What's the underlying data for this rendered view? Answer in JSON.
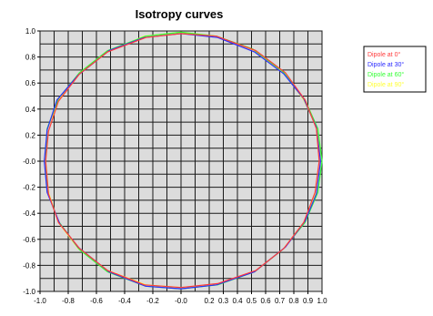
{
  "chart_data": {
    "type": "line",
    "title": "Isotropy curves",
    "xlabel": "",
    "ylabel": "",
    "xlim": [
      -1.0,
      1.0
    ],
    "ylim": [
      -1.0,
      1.0
    ],
    "grid": true,
    "legend_position": "right",
    "x_ticks": [
      -1.0,
      -0.8,
      -0.6,
      -0.4,
      -0.2,
      -0.0,
      0.2,
      0.3,
      0.4,
      0.5,
      0.6,
      0.7,
      0.8,
      0.9,
      1.0
    ],
    "x_tick_labels": [
      "-1.0",
      "-0.8",
      "-0.6",
      "-0.4",
      "-0.2",
      "-0.0",
      "0.2",
      "0.3",
      "0.4",
      "0.5",
      "0.6",
      "0.7",
      "0.8",
      "0.9",
      "1.0"
    ],
    "y_ticks": [
      1.0,
      0.8,
      0.6,
      0.4,
      0.2,
      0.0,
      -0.2,
      -0.4,
      -0.6,
      -0.8,
      -1.0
    ],
    "y_tick_labels": [
      "1.0",
      "0.8",
      "0.6",
      "0.4",
      "0.2",
      "-0.0",
      "-0.2",
      "-0.4",
      "-0.6",
      "-0.8",
      "-1.0"
    ],
    "series": [
      {
        "name": "Dipole at 0°",
        "color": "#ff3b3b",
        "points": [
          [
            0.98,
            0.0
          ],
          [
            0.96,
            0.25
          ],
          [
            0.88,
            0.47
          ],
          [
            0.74,
            0.68
          ],
          [
            0.53,
            0.85
          ],
          [
            0.25,
            0.96
          ],
          [
            0.0,
            0.98
          ],
          [
            -0.25,
            0.95
          ],
          [
            -0.52,
            0.84
          ],
          [
            -0.72,
            0.67
          ],
          [
            -0.87,
            0.46
          ],
          [
            -0.94,
            0.23
          ],
          [
            -0.96,
            0.0
          ],
          [
            -0.94,
            -0.25
          ],
          [
            -0.87,
            -0.47
          ],
          [
            -0.72,
            -0.67
          ],
          [
            -0.52,
            -0.84
          ],
          [
            -0.26,
            -0.95
          ],
          [
            0.0,
            -0.97
          ],
          [
            0.26,
            -0.94
          ],
          [
            0.53,
            -0.84
          ],
          [
            0.73,
            -0.67
          ],
          [
            0.87,
            -0.47
          ],
          [
            0.95,
            -0.24
          ],
          [
            0.98,
            0.0
          ]
        ]
      },
      {
        "name": "Dipole at 30°",
        "color": "#2b2bff",
        "points": [
          [
            0.99,
            0.0
          ],
          [
            0.96,
            0.26
          ],
          [
            0.87,
            0.48
          ],
          [
            0.73,
            0.67
          ],
          [
            0.52,
            0.84
          ],
          [
            0.26,
            0.95
          ],
          [
            0.0,
            0.98
          ],
          [
            -0.26,
            0.95
          ],
          [
            -0.51,
            0.85
          ],
          [
            -0.73,
            0.66
          ],
          [
            -0.88,
            0.47
          ],
          [
            -0.95,
            0.24
          ],
          [
            -0.97,
            0.0
          ],
          [
            -0.95,
            -0.24
          ],
          [
            -0.86,
            -0.48
          ],
          [
            -0.73,
            -0.66
          ],
          [
            -0.51,
            -0.85
          ],
          [
            -0.25,
            -0.96
          ],
          [
            0.0,
            -0.98
          ],
          [
            0.25,
            -0.95
          ],
          [
            0.52,
            -0.85
          ],
          [
            0.74,
            -0.66
          ],
          [
            0.88,
            -0.46
          ],
          [
            0.96,
            -0.25
          ],
          [
            0.99,
            0.0
          ]
        ]
      },
      {
        "name": "Dipole at 60°",
        "color": "#33ff33",
        "points": [
          [
            1.0,
            0.0
          ],
          [
            0.97,
            0.25
          ],
          [
            0.88,
            0.47
          ],
          [
            0.72,
            0.69
          ],
          [
            0.51,
            0.86
          ],
          [
            0.25,
            0.96
          ],
          [
            0.0,
            0.99
          ],
          [
            -0.25,
            0.96
          ],
          [
            -0.52,
            0.85
          ],
          [
            -0.72,
            0.68
          ],
          [
            -0.87,
            0.48
          ],
          [
            -0.95,
            0.25
          ],
          [
            -0.96,
            0.0
          ],
          [
            -0.95,
            -0.23
          ],
          [
            -0.87,
            -0.46
          ],
          [
            -0.72,
            -0.68
          ],
          [
            -0.52,
            -0.85
          ],
          [
            -0.25,
            -0.96
          ],
          [
            0.0,
            -0.98
          ],
          [
            0.26,
            -0.95
          ],
          [
            0.52,
            -0.85
          ],
          [
            0.73,
            -0.67
          ],
          [
            0.88,
            -0.47
          ],
          [
            0.97,
            -0.24
          ],
          [
            1.0,
            0.0
          ]
        ]
      },
      {
        "name": "Dipole at 90°",
        "color": "#ffff33",
        "points": [
          [
            0.99,
            0.0
          ],
          [
            0.97,
            0.24
          ],
          [
            0.87,
            0.47
          ],
          [
            0.73,
            0.68
          ],
          [
            0.52,
            0.85
          ],
          [
            0.25,
            0.96
          ],
          [
            0.0,
            0.99
          ],
          [
            -0.26,
            0.96
          ],
          [
            -0.52,
            0.84
          ],
          [
            -0.72,
            0.67
          ],
          [
            -0.87,
            0.47
          ],
          [
            -0.95,
            0.24
          ],
          [
            -0.96,
            0.0
          ],
          [
            -0.94,
            -0.24
          ],
          [
            -0.87,
            -0.47
          ],
          [
            -0.73,
            -0.67
          ],
          [
            -0.52,
            -0.84
          ],
          [
            -0.25,
            -0.95
          ],
          [
            0.0,
            -0.97
          ],
          [
            0.25,
            -0.95
          ],
          [
            0.52,
            -0.85
          ],
          [
            0.73,
            -0.67
          ],
          [
            0.87,
            -0.47
          ],
          [
            0.96,
            -0.24
          ],
          [
            0.99,
            0.0
          ]
        ]
      }
    ]
  }
}
